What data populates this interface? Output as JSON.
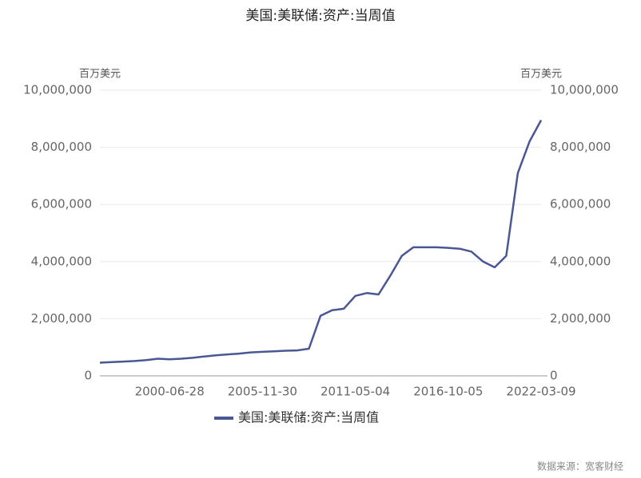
{
  "chart_data": {
    "type": "line",
    "title": "美国:美联储:资产:当周值",
    "y_unit": "百万美元",
    "y2_unit": "百万美元",
    "source": "数据来源：宽客财经",
    "categories": [
      null,
      null,
      null,
      null,
      null,
      null,
      "2000-06-28",
      null,
      null,
      null,
      null,
      null,
      null,
      null,
      "2005-11-30",
      null,
      null,
      null,
      null,
      null,
      null,
      null,
      "2011-05-04",
      null,
      null,
      null,
      null,
      null,
      null,
      null,
      "2016-10-05",
      null,
      null,
      null,
      null,
      null,
      null,
      null,
      "2022-03-09"
    ],
    "series": [
      {
        "name": "美国:美联储:资产:当周值",
        "color": "#4a5795",
        "values": [
          460000,
          480000,
          500000,
          520000,
          550000,
          600000,
          580000,
          600000,
          630000,
          680000,
          720000,
          750000,
          780000,
          820000,
          840000,
          860000,
          880000,
          890000,
          950000,
          2100000,
          2300000,
          2350000,
          2800000,
          2900000,
          2850000,
          3500000,
          4200000,
          4500000,
          4500000,
          4500000,
          4480000,
          4450000,
          4350000,
          4000000,
          3800000,
          4200000,
          7100000,
          8200000,
          8950000
        ]
      }
    ],
    "ylim": [
      0,
      10000000
    ],
    "yticks": [
      {
        "value": 0,
        "label": "0"
      },
      {
        "value": 2000000,
        "label": "2,000,000"
      },
      {
        "value": 4000000,
        "label": "4,000,000"
      },
      {
        "value": 6000000,
        "label": "6,000,000"
      },
      {
        "value": 8000000,
        "label": "8,000,000"
      },
      {
        "value": 10000000,
        "label": "10,000,000"
      }
    ],
    "y2lim": [
      0,
      10000000
    ],
    "y2ticks": [
      {
        "value": 0,
        "label": "0"
      },
      {
        "value": 2000000,
        "label": "2,000,000"
      },
      {
        "value": 4000000,
        "label": "4,000,000"
      },
      {
        "value": 6000000,
        "label": "6,000,000"
      },
      {
        "value": 8000000,
        "label": "8,000,000"
      },
      {
        "value": 10000000,
        "label": "10,000,000"
      }
    ],
    "grid": true
  }
}
